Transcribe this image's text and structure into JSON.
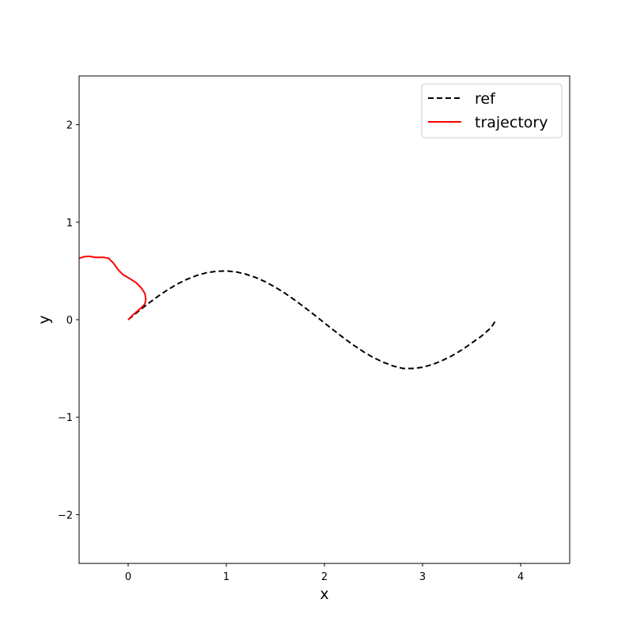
{
  "chart_data": {
    "type": "line",
    "title": "",
    "xlabel": "x",
    "ylabel": "y",
    "xlim": [
      -0.5,
      4.5
    ],
    "ylim": [
      -2.5,
      2.5
    ],
    "xticks": [
      0,
      1,
      2,
      3,
      4
    ],
    "yticks": [
      -2,
      -1,
      0,
      1,
      2
    ],
    "xtick_labels": [
      "0",
      "1",
      "2",
      "3",
      "4"
    ],
    "ytick_labels": [
      "−2",
      "−1",
      "0",
      "1",
      "2"
    ],
    "grid": false,
    "legend_position": "upper right",
    "series": [
      {
        "name": "ref",
        "color": "#000000",
        "style": "dashed",
        "x": [
          0,
          0.1,
          0.2,
          0.3,
          0.4,
          0.5,
          0.6,
          0.7,
          0.8,
          0.9,
          1.0,
          1.1,
          1.2,
          1.3,
          1.4,
          1.5,
          1.6,
          1.7,
          1.8,
          1.9,
          2.0,
          2.1,
          2.2,
          2.3,
          2.4,
          2.5,
          2.6,
          2.7,
          2.8,
          2.9,
          3.0,
          3.1,
          3.2,
          3.3,
          3.4,
          3.5,
          3.6,
          3.7,
          3.75
        ],
        "y": [
          0,
          0.083,
          0.162,
          0.237,
          0.305,
          0.365,
          0.415,
          0.454,
          0.482,
          0.497,
          0.5,
          0.49,
          0.467,
          0.433,
          0.388,
          0.333,
          0.27,
          0.2,
          0.125,
          0.047,
          -0.033,
          -0.113,
          -0.19,
          -0.263,
          -0.33,
          -0.389,
          -0.437,
          -0.475,
          -0.5,
          -0.5,
          -0.488,
          -0.46,
          -0.42,
          -0.37,
          -0.31,
          -0.24,
          -0.17,
          -0.08,
          0
        ]
      },
      {
        "name": "trajectory",
        "color": "#ff0000",
        "style": "solid",
        "x": [
          0,
          0.05,
          0.12,
          0.17,
          0.18,
          0.17,
          0.13,
          0.08,
          0.02,
          -0.05,
          -0.1,
          -0.15,
          -0.2,
          -0.25,
          -0.33,
          -0.4,
          -0.45,
          -0.5
        ],
        "y": [
          0,
          0.05,
          0.11,
          0.16,
          0.21,
          0.27,
          0.33,
          0.38,
          0.42,
          0.46,
          0.51,
          0.58,
          0.63,
          0.64,
          0.64,
          0.65,
          0.645,
          0.63
        ]
      }
    ]
  }
}
